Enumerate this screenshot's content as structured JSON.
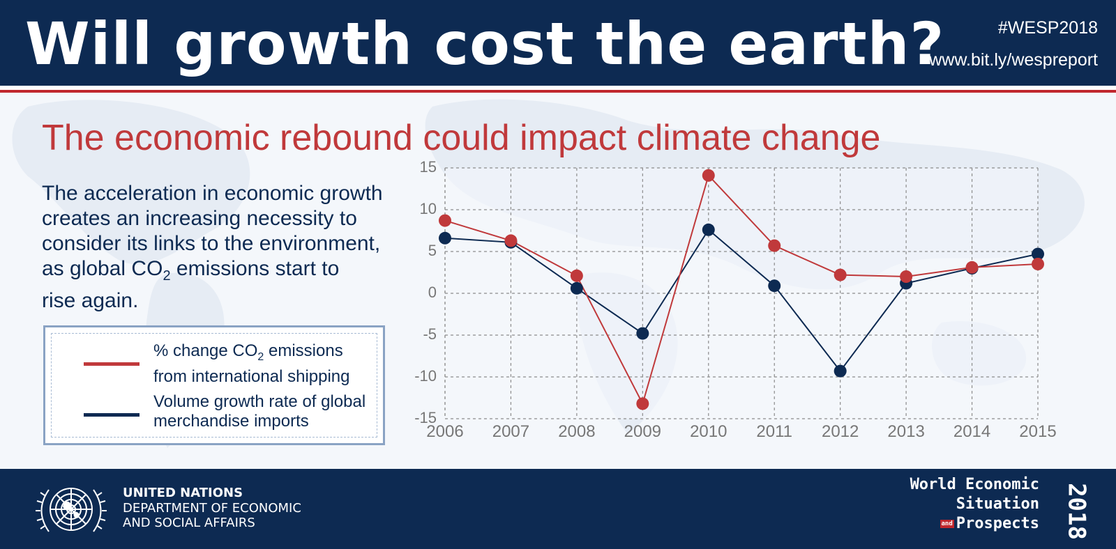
{
  "header": {
    "title": "Will growth cost the earth?",
    "hashtag": "#WESP2018",
    "url": "www.bit.ly/wespreport"
  },
  "subtitle": "The economic rebound could impact climate change",
  "description": {
    "line1": "The acceleration in economic growth",
    "line2": "creates an increasing necessity to",
    "line3": "consider its links to the environment,",
    "line4_pre": "as global CO",
    "line4_sub": "2",
    "line4_post": " emissions start to",
    "line5": "rise again."
  },
  "legend": {
    "item1_pre": "% change CO",
    "item1_sub": "2",
    "item1_post": " emissions",
    "item1_line2": "from international shipping",
    "item2_line1": "Volume growth rate of global",
    "item2_line2": "merchandise imports"
  },
  "footer": {
    "org_name": "UNITED NATIONS",
    "dept_line1": "DEPARTMENT OF ECONOMIC",
    "dept_line2": "AND SOCIAL AFFAIRS",
    "wesp_line1": "World Economic",
    "wesp_line2": "Situation",
    "wesp_and": "and",
    "wesp_line3": "Prospects",
    "wesp_year": "2018"
  },
  "colors": {
    "navy": "#0d2a52",
    "red": "#c0393b",
    "white": "#ffffff"
  },
  "chart_data": {
    "type": "line",
    "x": [
      "2006",
      "2007",
      "2008",
      "2009",
      "2010",
      "2011",
      "2012",
      "2013",
      "2014",
      "2015"
    ],
    "yticks": [
      "15",
      "10",
      "5",
      "0",
      "-5",
      "-10",
      "-15"
    ],
    "ylim": [
      -15,
      15
    ],
    "grid": true,
    "series": [
      {
        "name": "% change CO2 emissions from international shipping",
        "color": "#c0393b",
        "values": [
          8.7,
          6.3,
          2.1,
          -13.2,
          14.1,
          5.7,
          2.2,
          2.0,
          3.1,
          3.5
        ]
      },
      {
        "name": "Volume growth rate of global merchandise imports",
        "color": "#0d2a52",
        "values": [
          6.6,
          6.1,
          0.6,
          -4.8,
          7.6,
          0.9,
          -9.3,
          1.2,
          3.0,
          4.7
        ]
      }
    ]
  }
}
